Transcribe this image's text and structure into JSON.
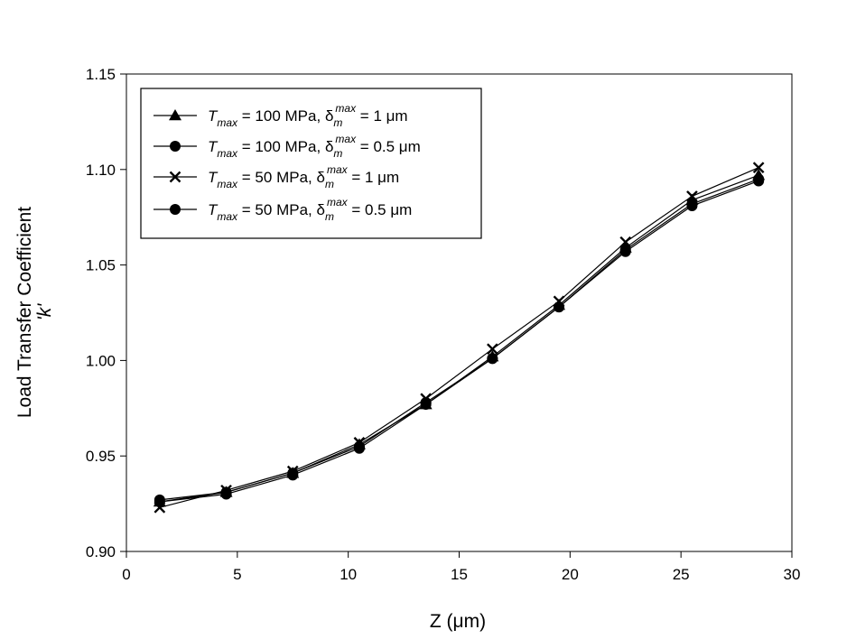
{
  "chart_data": {
    "type": "line",
    "title": "",
    "xlabel": "Z (μm)",
    "ylabel_line1": "Load Transfer Coefficient",
    "ylabel_line2": "'k'",
    "xlim": [
      0,
      30
    ],
    "ylim": [
      0.9,
      1.15
    ],
    "x_ticks": [
      0,
      5,
      10,
      15,
      20,
      25,
      30
    ],
    "y_ticks": [
      0.9,
      0.95,
      1.0,
      1.05,
      1.1,
      1.15
    ],
    "y_tick_format_decimals": 2,
    "grid": false,
    "legend_position": "top-left",
    "x": [
      1.5,
      4.5,
      7.5,
      10.5,
      13.5,
      16.5,
      19.5,
      22.5,
      25.5,
      28.5
    ],
    "series": [
      {
        "legend": {
          "T": "T",
          "T_sub": "max",
          "mid": " = 100 MPa, ",
          "d": "δ",
          "d_sub": "m",
          "d_sup": "max",
          "end": " = 1 μm"
        },
        "marker": "triangle",
        "values": [
          0.926,
          0.931,
          0.941,
          0.956,
          0.977,
          1.002,
          1.029,
          1.059,
          1.084,
          1.097
        ]
      },
      {
        "legend": {
          "T": "T",
          "T_sub": "max",
          "mid": " = 100 MPa, ",
          "d": "δ",
          "d_sub": "m",
          "d_sup": "max",
          "end": " = 0.5 μm"
        },
        "marker": "circle",
        "values": [
          0.926,
          0.93,
          0.94,
          0.954,
          0.977,
          1.001,
          1.028,
          1.057,
          1.081,
          1.094
        ]
      },
      {
        "legend": {
          "T": "T",
          "T_sub": "max",
          "mid": " = 50 MPa, ",
          "d": "δ",
          "d_sub": "m",
          "d_sup": "max",
          "end": " = 1 μm"
        },
        "marker": "x",
        "values": [
          0.923,
          0.932,
          0.942,
          0.957,
          0.98,
          1.006,
          1.031,
          1.062,
          1.086,
          1.101
        ]
      },
      {
        "legend": {
          "T": "T",
          "T_sub": "max",
          "mid": " = 50 MPa, ",
          "d": "δ",
          "d_sub": "m",
          "d_sup": "max",
          "end": " = 0.5 μm"
        },
        "marker": "circle",
        "values": [
          0.927,
          0.931,
          0.941,
          0.955,
          0.978,
          1.001,
          1.028,
          1.058,
          1.082,
          1.095
        ]
      }
    ],
    "colors": {
      "line": "#000000",
      "marker": "#000000",
      "background": "#ffffff"
    }
  }
}
